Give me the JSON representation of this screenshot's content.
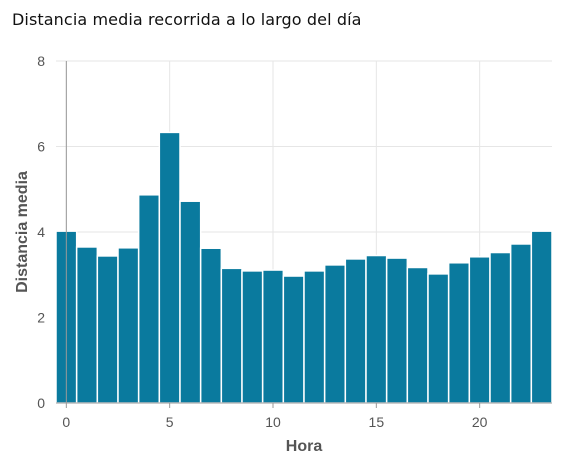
{
  "title": "Distancia media recorrida a lo largo del día",
  "colors": {
    "bar": "#0a7a9e",
    "bar_stroke": "#ffffff",
    "grid": "#e6e6e6",
    "axis": "#999999",
    "text": "#555555"
  },
  "chart_data": {
    "type": "bar",
    "title": "Distancia media recorrida a lo largo del día",
    "xlabel": "Hora",
    "ylabel": "Distancia media",
    "x": [
      0,
      1,
      2,
      3,
      4,
      5,
      6,
      7,
      8,
      9,
      10,
      11,
      12,
      13,
      14,
      15,
      16,
      17,
      18,
      19,
      20,
      21,
      22,
      23
    ],
    "values": [
      4.02,
      3.65,
      3.44,
      3.63,
      4.87,
      6.33,
      4.72,
      3.62,
      3.15,
      3.09,
      3.11,
      2.97,
      3.09,
      3.23,
      3.37,
      3.45,
      3.39,
      3.17,
      3.02,
      3.28,
      3.42,
      3.52,
      3.72,
      4.02
    ],
    "xticks": [
      0,
      5,
      10,
      15,
      20
    ],
    "yticks": [
      0,
      2,
      4,
      6,
      8
    ],
    "xlim": [
      -0.5,
      23.5
    ],
    "ylim": [
      0,
      8
    ],
    "grid": true
  }
}
